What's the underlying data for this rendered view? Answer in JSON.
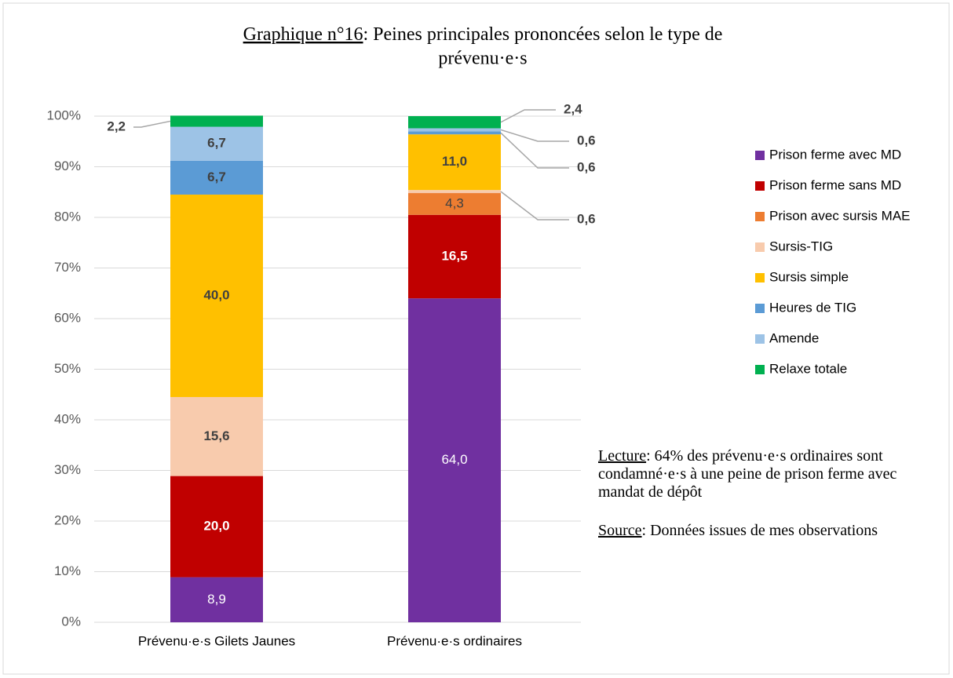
{
  "chart_data": {
    "type": "stacked_bar",
    "title_parts": [
      "Graphique n°16",
      ": Peines principales prononcées selon le type de",
      "prévenu·e·s"
    ],
    "categories": [
      "Prévenu·e·s Gilets Jaunes",
      "Prévenu·e·s ordinaires"
    ],
    "series": [
      {
        "name": "Prison ferme avec MD",
        "color": "#7030a0",
        "values": [
          8.9,
          64.0
        ],
        "value_labels": [
          "8,9",
          "64,0"
        ]
      },
      {
        "name": "Prison ferme sans MD",
        "color": "#c00000",
        "values": [
          20.0,
          16.5
        ],
        "value_labels": [
          "20,0",
          "16,5"
        ]
      },
      {
        "name": "Prison avec sursis MAE",
        "color": "#ed7d31",
        "values": [
          null,
          4.3
        ],
        "value_labels": [
          null,
          "4,3"
        ]
      },
      {
        "name": "Sursis-TIG",
        "color": "#f8cbad",
        "values": [
          15.6,
          0.6
        ],
        "value_labels": [
          "15,6",
          "0,6"
        ]
      },
      {
        "name": "Sursis simple",
        "color": "#ffc000",
        "values": [
          40.0,
          11.0
        ],
        "value_labels": [
          "40,0",
          "11,0"
        ]
      },
      {
        "name": "Heures de TIG",
        "color": "#5b9bd5",
        "values": [
          6.7,
          0.6
        ],
        "value_labels": [
          "6,7",
          "0,6"
        ]
      },
      {
        "name": "Amende",
        "color": "#9dc3e6",
        "values": [
          6.7,
          0.6
        ],
        "value_labels": [
          "6,7",
          "0,6"
        ]
      },
      {
        "name": "Relaxe totale",
        "color": "#00b050",
        "values": [
          2.2,
          2.4
        ],
        "value_labels": [
          "2,2",
          "2,4"
        ]
      }
    ],
    "ylim": [
      0,
      100
    ],
    "yticks": [
      {
        "value": 0,
        "label": "0%"
      },
      {
        "value": 10,
        "label": "10%"
      },
      {
        "value": 20,
        "label": "20%"
      },
      {
        "value": 30,
        "label": "30%"
      },
      {
        "value": 40,
        "label": "40%"
      },
      {
        "value": 50,
        "label": "50%"
      },
      {
        "value": 60,
        "label": "60%"
      },
      {
        "value": 70,
        "label": "70%"
      },
      {
        "value": 80,
        "label": "80%"
      },
      {
        "value": 90,
        "label": "90%"
      },
      {
        "value": 100,
        "label": "100%"
      }
    ],
    "grid": true,
    "legend": "right",
    "notes": [
      {
        "label": "Lecture",
        "text": ": 64% des prévenu·e·s ordinaires sont condamné·e·s à une peine de prison ferme avec mandat de dépôt"
      },
      {
        "label": "Source",
        "text": ": Données issues de mes observations"
      }
    ]
  }
}
